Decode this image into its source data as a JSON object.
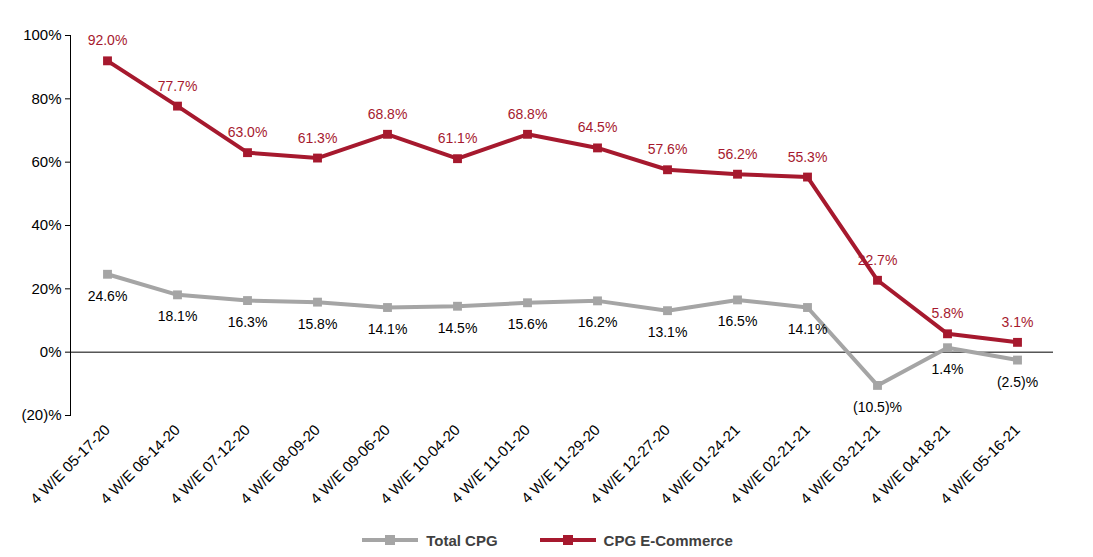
{
  "chart_data": {
    "type": "line",
    "categories": [
      "4 W/E 05-17-20",
      "4 W/E 06-14-20",
      "4 W/E 07-12-20",
      "4 W/E 08-09-20",
      "4 W/E 09-06-20",
      "4 W/E 10-04-20",
      "4 W/E 11-01-20",
      "4 W/E 11-29-20",
      "4 W/E 12-27-20",
      "4 W/E 01-24-21",
      "4 W/E 02-21-21",
      "4 W/E 03-21-21",
      "4 W/E 04-18-21",
      "4 W/E 05-16-21"
    ],
    "series": [
      {
        "name": "Total CPG",
        "color": "#A5A5A5",
        "marker": "square",
        "values": [
          24.6,
          18.1,
          16.3,
          15.8,
          14.1,
          14.5,
          15.6,
          16.2,
          13.1,
          16.5,
          14.1,
          -10.5,
          1.4,
          -2.5
        ],
        "value_labels": [
          "24.6%",
          "18.1%",
          "16.3%",
          "15.8%",
          "14.1%",
          "14.5%",
          "15.6%",
          "16.2%",
          "13.1%",
          "16.5%",
          "14.1%",
          "(10.5)%",
          "1.4%",
          "(2.5)%"
        ]
      },
      {
        "name": "CPG E-Commerce",
        "color": "#A6192E",
        "marker": "square",
        "values": [
          92.0,
          77.7,
          63.0,
          61.3,
          68.8,
          61.1,
          68.8,
          64.5,
          57.6,
          56.2,
          55.3,
          22.7,
          5.8,
          3.1
        ],
        "value_labels": [
          "92.0%",
          "77.7%",
          "63.0%",
          "61.3%",
          "68.8%",
          "61.1%",
          "68.8%",
          "64.5%",
          "57.6%",
          "56.2%",
          "55.3%",
          "22.7%",
          "5.8%",
          "3.1%"
        ]
      }
    ],
    "ylim": [
      -20,
      100
    ],
    "yticks": [
      {
        "value": -20,
        "label": "(20)%"
      },
      {
        "value": 0,
        "label": "0%"
      },
      {
        "value": 20,
        "label": "20%"
      },
      {
        "value": 40,
        "label": "40%"
      },
      {
        "value": 60,
        "label": "60%"
      },
      {
        "value": 80,
        "label": "80%"
      },
      {
        "value": 100,
        "label": "100%"
      }
    ],
    "grid": false,
    "data_labels": true,
    "legend": "bottom"
  }
}
